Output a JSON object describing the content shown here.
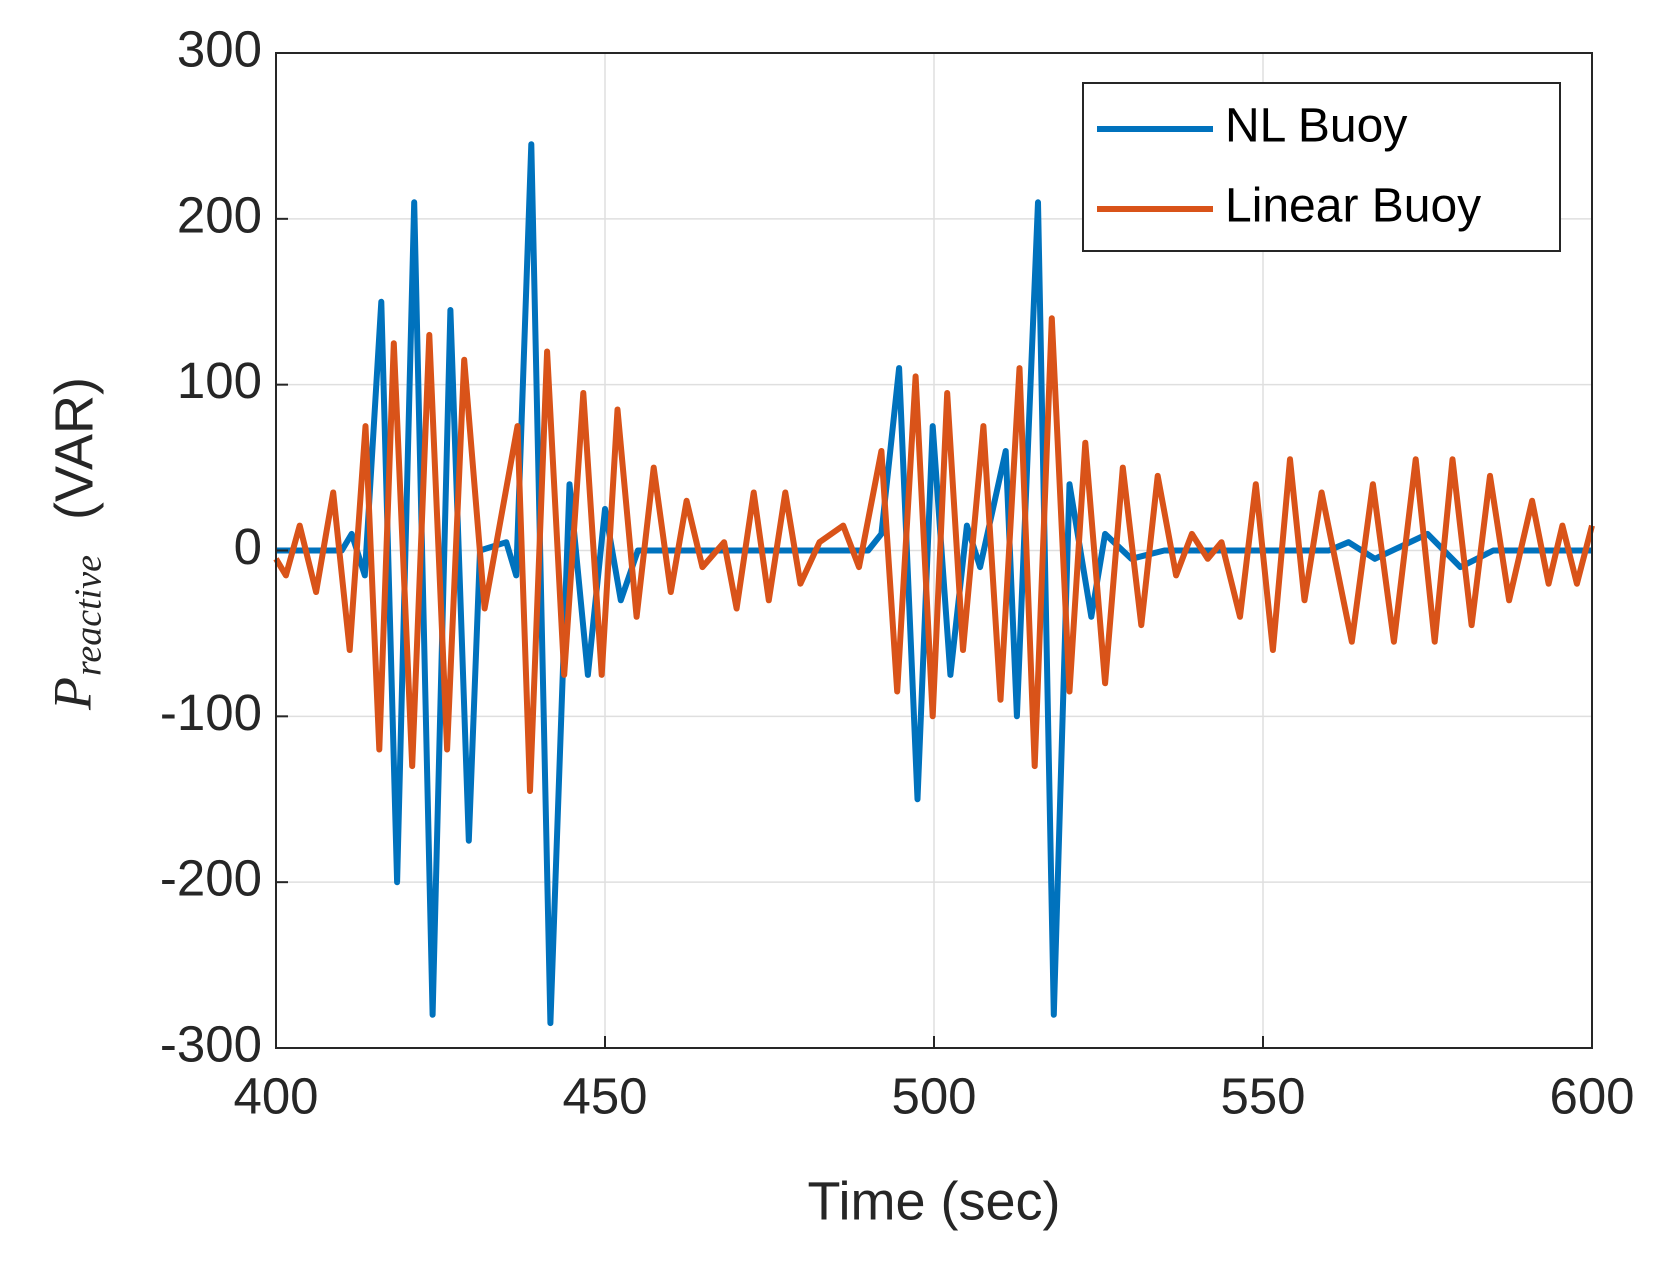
{
  "chart_data": {
    "type": "line",
    "xlabel": "Time (sec)",
    "ylabel": {
      "symbol": "P",
      "subscript": "reactive",
      "unit": "(VAR)"
    },
    "xlim": [
      400,
      600
    ],
    "xticks": [
      400,
      450,
      500,
      550,
      600
    ],
    "ylim": [
      -300,
      300
    ],
    "yticks": [
      -300,
      -200,
      -100,
      0,
      100,
      200,
      300
    ],
    "grid": true,
    "legend": "upper right",
    "series": [
      {
        "name": "NL Buoy",
        "color": "#0072bd",
        "x": [
          400,
          410,
          411.5,
          413.5,
          416,
          418.4,
          421,
          423.8,
          426.5,
          429.3,
          431,
          435,
          436.5,
          438.8,
          441.7,
          444.6,
          447.4,
          450,
          452.4,
          455,
          490,
          492,
          494.7,
          497.5,
          499.8,
          502.5,
          505,
          507,
          510.9,
          512.6,
          515.8,
          518.2,
          520.6,
          523.9,
          526,
          530,
          535,
          560,
          563,
          567,
          575,
          580,
          585,
          600
        ],
        "values": [
          0,
          0,
          10,
          -15,
          150,
          -200,
          210,
          -280,
          145,
          -175,
          0,
          5,
          -15,
          245,
          -285,
          40,
          -75,
          25,
          -30,
          0,
          0,
          10,
          110,
          -150,
          75,
          -75,
          15,
          -10,
          60,
          -100,
          210,
          -280,
          40,
          -40,
          10,
          -5,
          0,
          0,
          5,
          -5,
          10,
          -10,
          0,
          0
        ]
      },
      {
        "name": "Linear Buoy",
        "color": "#d95319",
        "x": [
          400,
          401.5,
          403.6,
          406.1,
          408.7,
          411.2,
          413.6,
          415.7,
          417.9,
          420.7,
          423.3,
          426,
          428.6,
          431.7,
          433.3,
          436.7,
          438.6,
          441.2,
          443.8,
          446.7,
          449.5,
          451.9,
          454.8,
          457.4,
          460,
          462.4,
          464.8,
          468.1,
          470,
          472.6,
          474.9,
          477.4,
          479.7,
          482.6,
          486.2,
          488.6,
          492,
          494.4,
          497.2,
          499.8,
          502,
          504.4,
          507.5,
          510.1,
          513,
          515.3,
          517.9,
          520.6,
          523,
          526,
          528.7,
          531.5,
          534,
          536.8,
          539.2,
          541.6,
          543.7,
          546.5,
          548.9,
          551.5,
          554.1,
          556.3,
          558.9,
          563.5,
          566.7,
          569.9,
          573.2,
          576.1,
          578.8,
          581.7,
          584.5,
          587.4,
          590.9,
          593.4,
          595.5,
          597.7,
          600
        ],
        "values": [
          -5,
          -15,
          15,
          -25,
          35,
          -60,
          75,
          -120,
          125,
          -130,
          130,
          -120,
          115,
          -35,
          0,
          75,
          -145,
          120,
          -75,
          95,
          -75,
          85,
          -40,
          50,
          -25,
          30,
          -10,
          5,
          -35,
          35,
          -30,
          35,
          -20,
          5,
          15,
          -10,
          60,
          -85,
          105,
          -100,
          95,
          -60,
          75,
          -90,
          110,
          -130,
          140,
          -85,
          65,
          -80,
          50,
          -45,
          45,
          -15,
          10,
          -5,
          5,
          -40,
          40,
          -60,
          55,
          -30,
          35,
          -55,
          40,
          -55,
          55,
          -55,
          55,
          -45,
          45,
          -30,
          30,
          -20,
          15,
          -20,
          15
        ]
      }
    ]
  }
}
